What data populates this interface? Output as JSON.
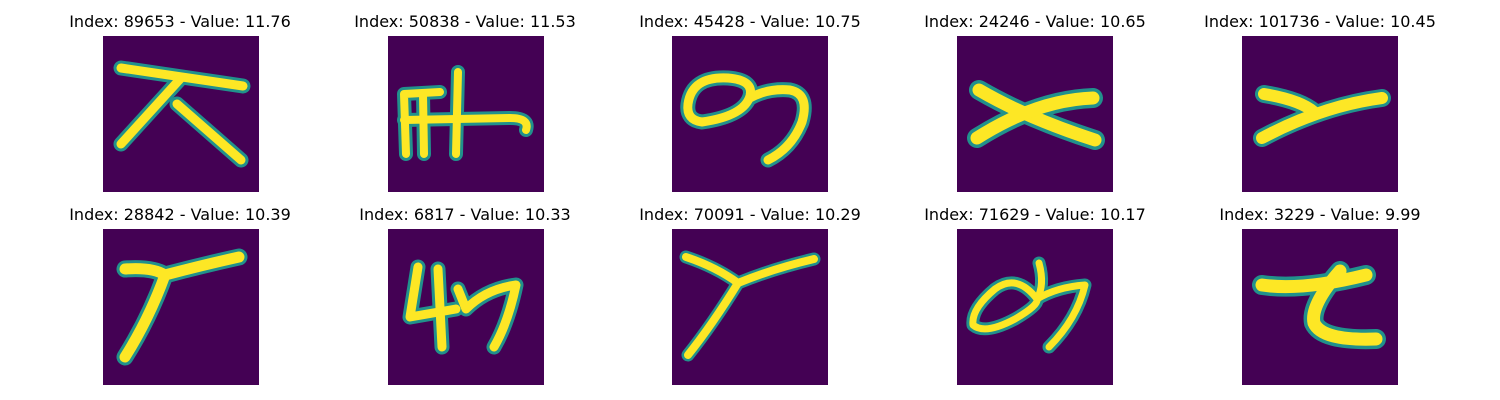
{
  "figure": {
    "background": "#440154",
    "stroke_color": "#fde725",
    "edge_color": "#21918c",
    "panels": [
      {
        "title": "Index: 89653 - Value: 11.76",
        "index": 89653,
        "value": 11.76
      },
      {
        "title": "Index: 50838 - Value: 11.53",
        "index": 50838,
        "value": 11.53
      },
      {
        "title": "Index: 45428 - Value: 10.75",
        "index": 45428,
        "value": 10.75
      },
      {
        "title": "Index: 24246 - Value: 10.65",
        "index": 24246,
        "value": 10.65
      },
      {
        "title": "Index: 101736 - Value: 10.45",
        "index": 101736,
        "value": 10.45
      },
      {
        "title": "Index: 28842 - Value: 10.39",
        "index": 28842,
        "value": 10.39
      },
      {
        "title": "Index: 6817 - Value: 10.33",
        "index": 6817,
        "value": 10.33
      },
      {
        "title": "Index: 70091 - Value: 10.29",
        "index": 70091,
        "value": 10.29
      },
      {
        "title": "Index: 71629 - Value: 10.17",
        "index": 71629,
        "value": 10.17
      },
      {
        "title": "Index: 3229 - Value: 9.99",
        "index": 3229,
        "value": 9.99
      }
    ]
  }
}
